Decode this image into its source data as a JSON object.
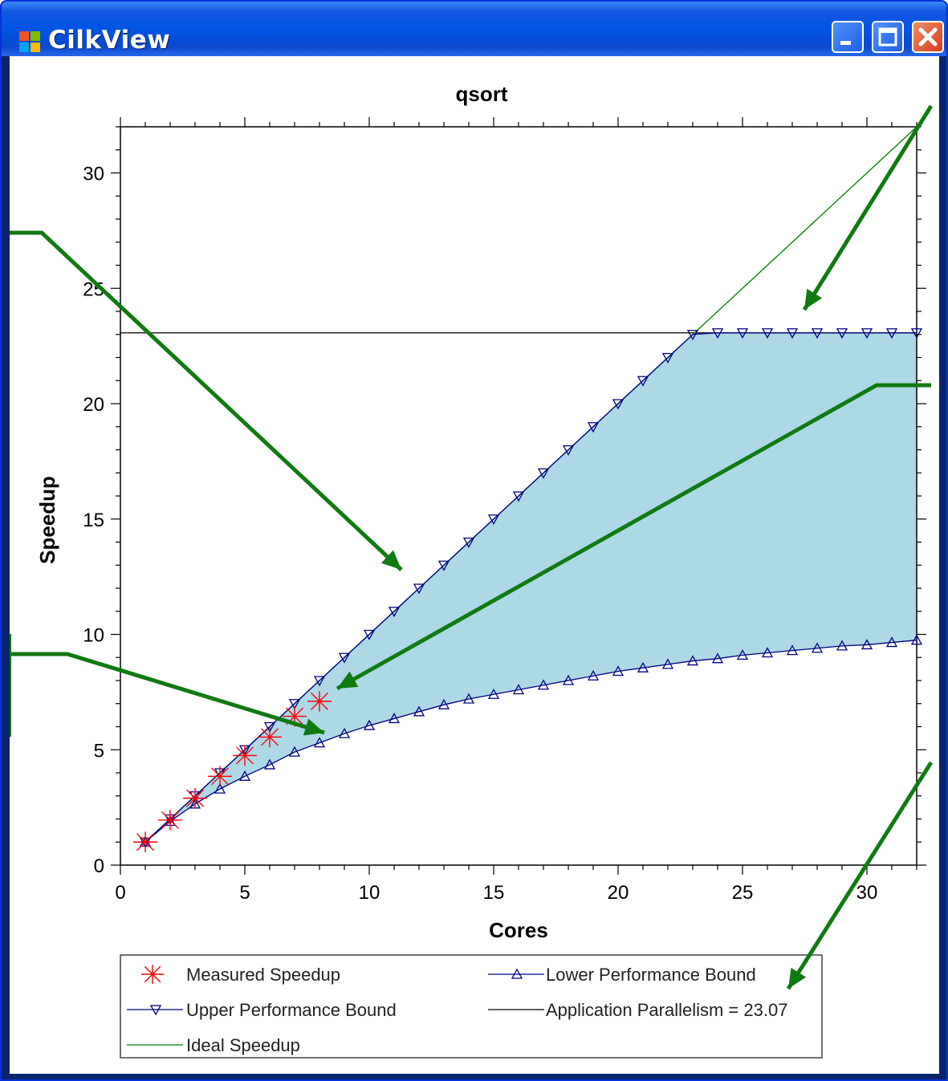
{
  "window": {
    "title": "CilkView",
    "app_icon": "windows-app-icon"
  },
  "controls": {
    "minimize": "minimize-icon",
    "maximize": "maximize-icon",
    "close": "close-icon"
  },
  "colors": {
    "fill": "#add8e6",
    "bound": "#000080",
    "measured": "#ff0000",
    "ideal": "#008000",
    "parallelism": "#000000",
    "annotation": "#107a10"
  },
  "chart_data": {
    "type": "line",
    "title": "qsort",
    "xlabel": "Cores",
    "ylabel": "Speedup",
    "xlim": [
      0,
      32
    ],
    "ylim": [
      0,
      32
    ],
    "x_ticks": [
      0,
      5,
      10,
      15,
      20,
      25,
      30
    ],
    "y_ticks": [
      0,
      5,
      10,
      15,
      20,
      25,
      30
    ],
    "parallelism": 23.07,
    "series": [
      {
        "name": "Measured Speedup",
        "x": [
          1,
          2,
          3,
          4,
          5,
          6,
          7,
          8
        ],
        "y": [
          1.0,
          1.95,
          2.9,
          3.85,
          4.75,
          5.55,
          6.45,
          7.1
        ]
      },
      {
        "name": "Lower Performance Bound",
        "x": [
          1,
          2,
          3,
          4,
          5,
          6,
          7,
          8,
          9,
          10,
          11,
          12,
          13,
          14,
          15,
          16,
          17,
          18,
          19,
          20,
          21,
          22,
          23,
          24,
          25,
          26,
          27,
          28,
          29,
          30,
          31,
          32
        ],
        "y": [
          1.0,
          1.9,
          2.65,
          3.3,
          3.85,
          4.35,
          4.9,
          5.3,
          5.7,
          6.05,
          6.35,
          6.65,
          6.95,
          7.2,
          7.4,
          7.6,
          7.8,
          8.0,
          8.2,
          8.4,
          8.55,
          8.7,
          8.85,
          8.95,
          9.1,
          9.2,
          9.3,
          9.4,
          9.5,
          9.55,
          9.65,
          9.75
        ]
      },
      {
        "name": "Upper Performance Bound",
        "x": [
          1,
          2,
          3,
          4,
          5,
          6,
          7,
          8,
          9,
          10,
          11,
          12,
          13,
          14,
          15,
          16,
          17,
          18,
          19,
          20,
          21,
          22,
          23,
          24,
          25,
          26,
          27,
          28,
          29,
          30,
          31,
          32
        ],
        "y": [
          1.0,
          2.0,
          3.0,
          4.0,
          5.0,
          6.0,
          7.0,
          8.0,
          9.0,
          10.0,
          11.0,
          12.0,
          13.0,
          14.0,
          15.0,
          16.0,
          17.0,
          18.0,
          19.0,
          20.0,
          21.0,
          22.0,
          23.0,
          23.07,
          23.07,
          23.07,
          23.07,
          23.07,
          23.07,
          23.07,
          23.07,
          23.07
        ]
      },
      {
        "name": "Ideal Speedup",
        "x": [
          1,
          32
        ],
        "y": [
          1,
          32
        ]
      }
    ],
    "legend": {
      "placement": "bottom",
      "entries": [
        {
          "label": "Measured Speedup",
          "marker": "asterisk"
        },
        {
          "label": "Lower Performance Bound",
          "marker": "triangle-up"
        },
        {
          "label": "Upper Performance Bound",
          "marker": "triangle-down"
        },
        {
          "label": "Application Parallelism = 23.07",
          "marker": "line"
        },
        {
          "label": "Ideal Speedup",
          "marker": "line"
        }
      ]
    }
  }
}
